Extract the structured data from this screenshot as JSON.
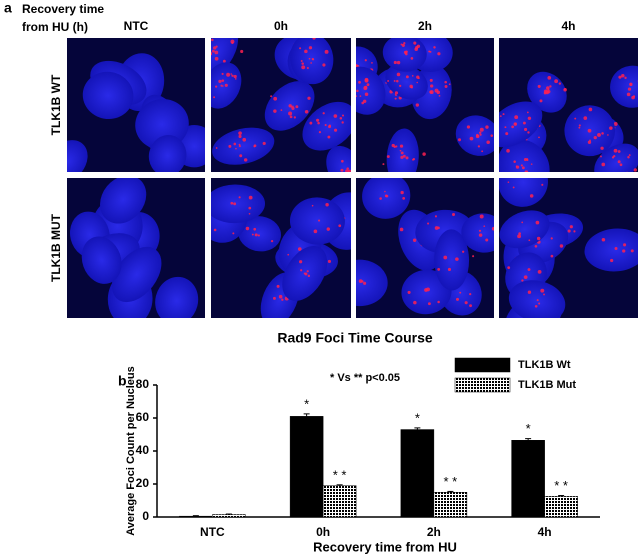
{
  "figure_a": {
    "panel_label": "a",
    "header_line1": "Recovery time",
    "header_line2": "from HU (h)",
    "columns": [
      "NTC",
      "0h",
      "2h",
      "4h"
    ],
    "rows": [
      "TLK1B  WT",
      "TLK1B  MUT"
    ],
    "caption": "Rad9 Foci Time Course"
  },
  "chart_data": {
    "type": "bar",
    "panel_label": "b",
    "annotation": "* Vs ** p<0.05",
    "x_label": "Recovery time from HU",
    "y_label": "Average Foci Count per Nucleus",
    "categories": [
      "NTC",
      "0h",
      "2h",
      "4h"
    ],
    "series": [
      {
        "name": "TLK1B Wt",
        "color": "#000000",
        "values": [
          0.5,
          61,
          53,
          46.5
        ],
        "errors": [
          0.3,
          1.5,
          1,
          1
        ],
        "markers": [
          null,
          "*",
          "*",
          "*"
        ]
      },
      {
        "name": "TLK1B Mut",
        "color": "hatched",
        "values": [
          1.5,
          19,
          15,
          12.5
        ],
        "errors": [
          0.3,
          0.5,
          0.5,
          0.5
        ],
        "markers": [
          null,
          "* *",
          "* *",
          "* *"
        ]
      }
    ],
    "ylim": [
      0,
      80
    ],
    "yticks": [
      0,
      20,
      40,
      60,
      80
    ],
    "legend": "top-right"
  }
}
